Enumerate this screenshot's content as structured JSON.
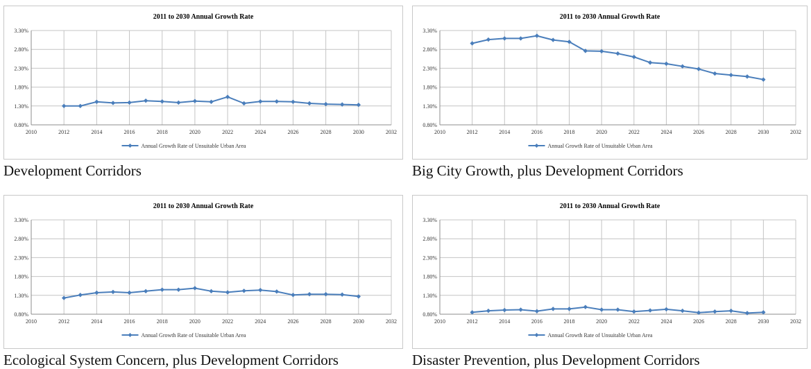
{
  "chart_data": [
    {
      "type": "line",
      "title": "2011 to 2030 Annual Growth Rate",
      "caption": "Development Corridors",
      "xlim": [
        2010,
        2032
      ],
      "x_ticks": [
        "2010",
        "2012",
        "2014",
        "2016",
        "2018",
        "2020",
        "2022",
        "2024",
        "2026",
        "2028",
        "2030",
        "2032"
      ],
      "ylim": [
        0.8,
        3.3
      ],
      "y_ticks": [
        "0.80%",
        "1.30%",
        "1.80%",
        "2.30%",
        "2.80%",
        "3.30%"
      ],
      "grid": true,
      "legend_position": "bottom",
      "color": "#4a7ebb",
      "series": [
        {
          "name": "Annual Growth Rate of Unsuitable Urban Area",
          "x": [
            2012,
            2013,
            2014,
            2015,
            2016,
            2017,
            2018,
            2019,
            2020,
            2021,
            2022,
            2023,
            2024,
            2025,
            2026,
            2027,
            2028,
            2029,
            2030
          ],
          "values": [
            1.3,
            1.3,
            1.41,
            1.38,
            1.39,
            1.44,
            1.42,
            1.39,
            1.43,
            1.41,
            1.54,
            1.37,
            1.42,
            1.42,
            1.41,
            1.37,
            1.35,
            1.34,
            1.33
          ]
        }
      ]
    },
    {
      "type": "line",
      "title": "2011 to 2030 Annual Growth Rate",
      "caption": "Big City Growth, plus Development Corridors",
      "xlim": [
        2010,
        2032
      ],
      "x_ticks": [
        "2010",
        "2012",
        "2014",
        "2016",
        "2018",
        "2020",
        "2022",
        "2024",
        "2026",
        "2028",
        "2030",
        "2032"
      ],
      "ylim": [
        0.8,
        3.3
      ],
      "y_ticks": [
        "0.80%",
        "1.30%",
        "1.80%",
        "2.30%",
        "2.80%",
        "3.30%"
      ],
      "grid": true,
      "legend_position": "bottom",
      "color": "#4a7ebb",
      "series": [
        {
          "name": "Annual Growth Rate of Unsuitable Urban Area",
          "x": [
            2012,
            2013,
            2014,
            2015,
            2016,
            2017,
            2018,
            2019,
            2020,
            2021,
            2022,
            2023,
            2024,
            2025,
            2026,
            2027,
            2028,
            2029,
            2030
          ],
          "values": [
            2.96,
            3.06,
            3.09,
            3.09,
            3.16,
            3.05,
            3.0,
            2.76,
            2.75,
            2.69,
            2.6,
            2.45,
            2.42,
            2.35,
            2.28,
            2.16,
            2.12,
            2.08,
            2.0
          ]
        }
      ]
    },
    {
      "type": "line",
      "title": "2011 to 2030 Annual Growth Rate",
      "caption": "Ecological System Concern, plus Development Corridors",
      "xlim": [
        2010,
        2032
      ],
      "x_ticks": [
        "2010",
        "2012",
        "2014",
        "2016",
        "2018",
        "2020",
        "2022",
        "2024",
        "2026",
        "2028",
        "2030",
        "2032"
      ],
      "ylim": [
        0.8,
        3.3
      ],
      "y_ticks": [
        "0.80%",
        "1.30%",
        "1.80%",
        "2.30%",
        "2.80%",
        "3.30%"
      ],
      "grid": true,
      "legend_position": "bottom",
      "color": "#4a7ebb",
      "series": [
        {
          "name": "Annual Growth Rate of Unsuitable Urban Area",
          "x": [
            2012,
            2013,
            2014,
            2015,
            2016,
            2017,
            2018,
            2019,
            2020,
            2021,
            2022,
            2023,
            2024,
            2025,
            2026,
            2027,
            2028,
            2029,
            2030
          ],
          "values": [
            1.23,
            1.31,
            1.37,
            1.39,
            1.37,
            1.41,
            1.45,
            1.45,
            1.49,
            1.41,
            1.38,
            1.42,
            1.44,
            1.4,
            1.31,
            1.33,
            1.33,
            1.32,
            1.27
          ]
        }
      ]
    },
    {
      "type": "line",
      "title": "2011 to 2030 Annual Growth Rate",
      "caption": "Disaster Prevention, plus Development Corridors",
      "xlim": [
        2010,
        2032
      ],
      "x_ticks": [
        "2010",
        "2012",
        "2014",
        "2016",
        "2018",
        "2020",
        "2022",
        "2024",
        "2026",
        "2028",
        "2030",
        "2032"
      ],
      "ylim": [
        0.8,
        3.3
      ],
      "y_ticks": [
        "0.80%",
        "1.30%",
        "1.80%",
        "2.30%",
        "2.80%",
        "3.30%"
      ],
      "grid": true,
      "legend_position": "bottom",
      "color": "#4a7ebb",
      "series": [
        {
          "name": "Annual Growth Rate of Unsuitable Urban Area",
          "x": [
            2012,
            2013,
            2014,
            2015,
            2016,
            2017,
            2018,
            2019,
            2020,
            2021,
            2022,
            2023,
            2024,
            2025,
            2026,
            2027,
            2028,
            2029,
            2030
          ],
          "values": [
            0.85,
            0.89,
            0.91,
            0.92,
            0.88,
            0.94,
            0.94,
            0.99,
            0.92,
            0.92,
            0.87,
            0.9,
            0.93,
            0.89,
            0.84,
            0.87,
            0.89,
            0.83,
            0.85
          ]
        }
      ]
    }
  ]
}
